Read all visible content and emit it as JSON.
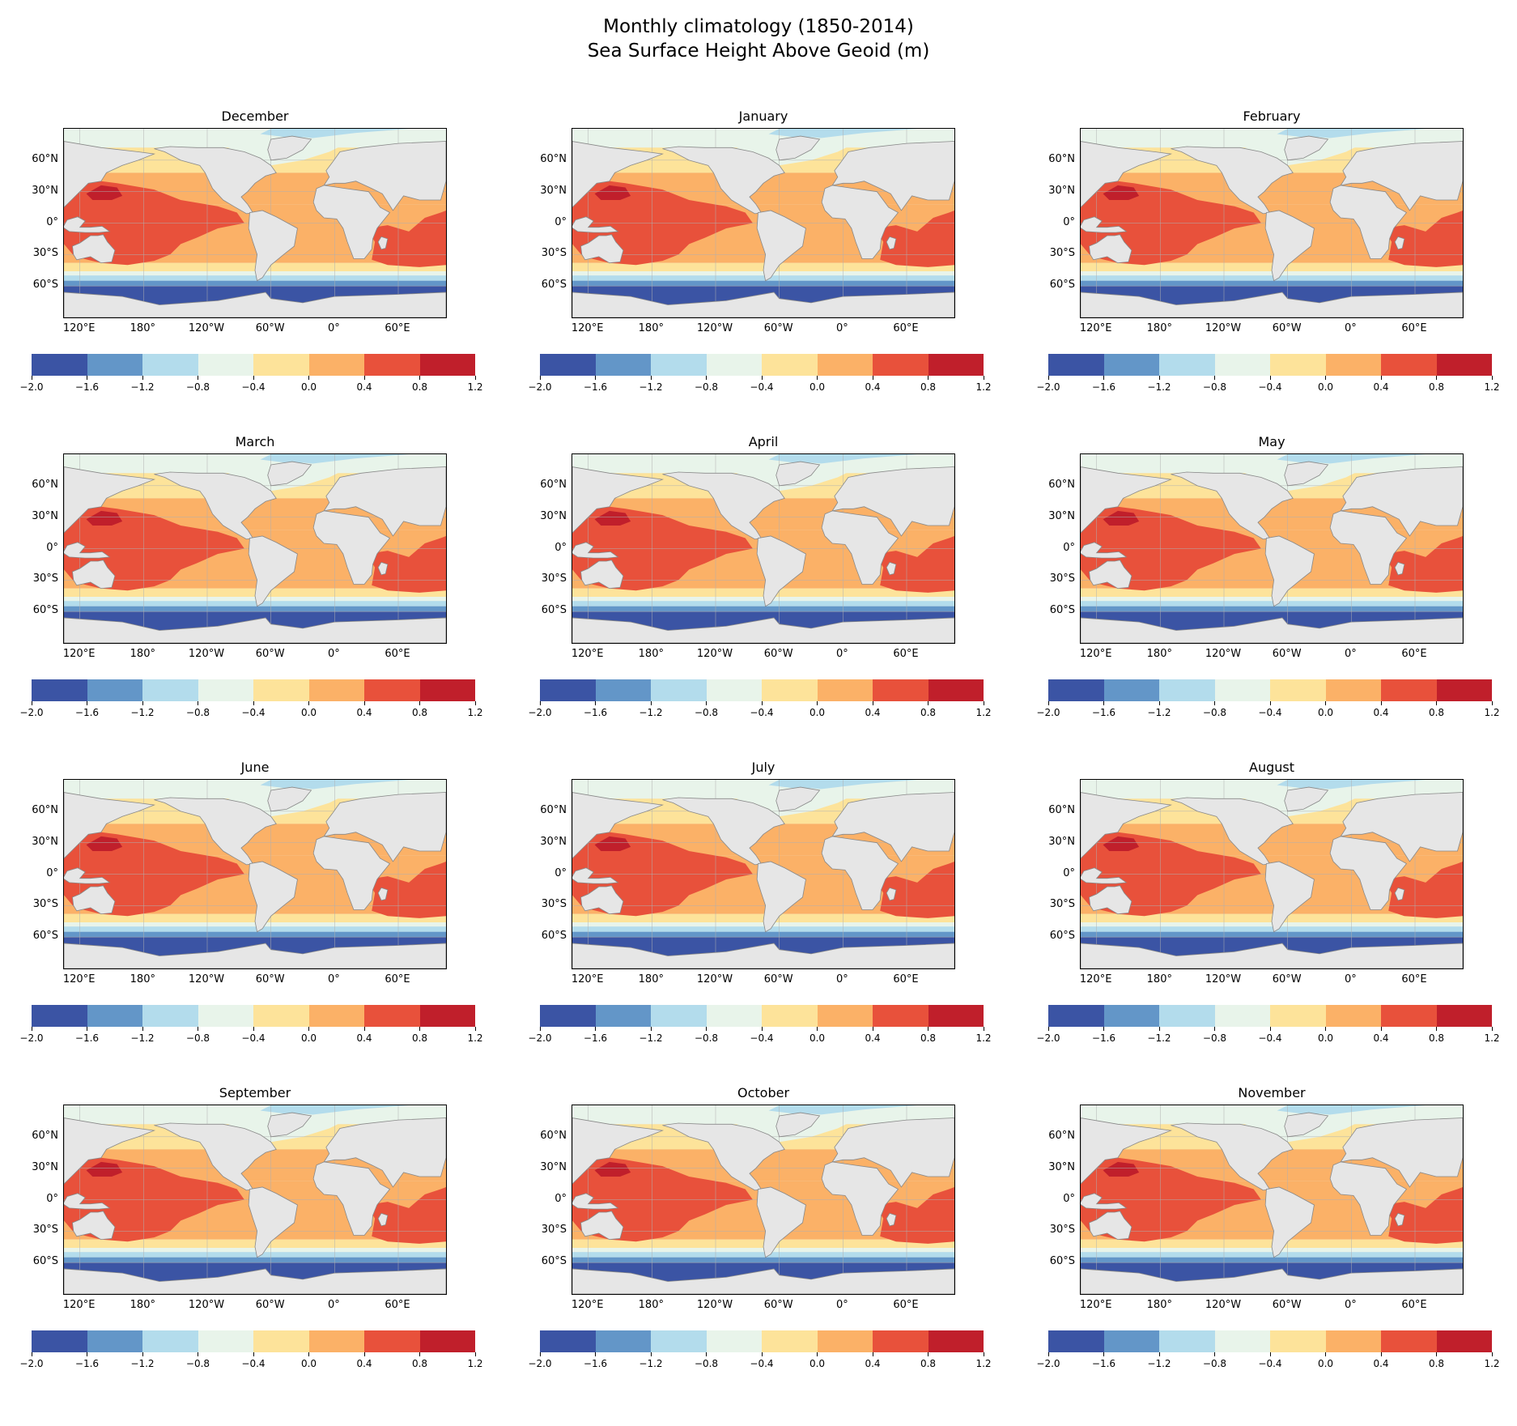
{
  "figure": {
    "title_line1": "Monthly climatology (1850-2014)",
    "title_line2": "Sea Surface Height Above Geoid (m)"
  },
  "panels": [
    {
      "title": "December"
    },
    {
      "title": "January"
    },
    {
      "title": "February"
    },
    {
      "title": "March"
    },
    {
      "title": "April"
    },
    {
      "title": "May"
    },
    {
      "title": "June"
    },
    {
      "title": "July"
    },
    {
      "title": "August"
    },
    {
      "title": "September"
    },
    {
      "title": "October"
    },
    {
      "title": "November"
    }
  ],
  "map_axes": {
    "lat_labels": [
      "60°N",
      "30°N",
      "0°",
      "30°S",
      "60°S"
    ],
    "lat_values": [
      60,
      30,
      0,
      -30,
      -60
    ],
    "lon_labels": [
      "120°E",
      "180°",
      "120°W",
      "60°W",
      "0°",
      "60°E"
    ],
    "lon_values": [
      120,
      180,
      240,
      300,
      360,
      420
    ],
    "lon_range": [
      105,
      465
    ],
    "lat_range": [
      -90,
      90
    ]
  },
  "colorbar": {
    "levels": [
      -2.0,
      -1.6,
      -1.2,
      -0.8,
      -0.4,
      0.0,
      0.4,
      0.8,
      1.2
    ],
    "tick_labels": [
      "−2.0",
      "−1.6",
      "−1.2",
      "−0.8",
      "−0.4",
      "0.0",
      "0.4",
      "0.8",
      "1.2"
    ],
    "colors": [
      "#3b54a4",
      "#6396c8",
      "#b3dcec",
      "#e8f4ea",
      "#fde39a",
      "#fbb167",
      "#e8513b",
      "#c01f2b"
    ]
  },
  "colors": {
    "land": "#e6e6e6",
    "coastline": "#888888",
    "grid": "#b0b0b0"
  }
}
